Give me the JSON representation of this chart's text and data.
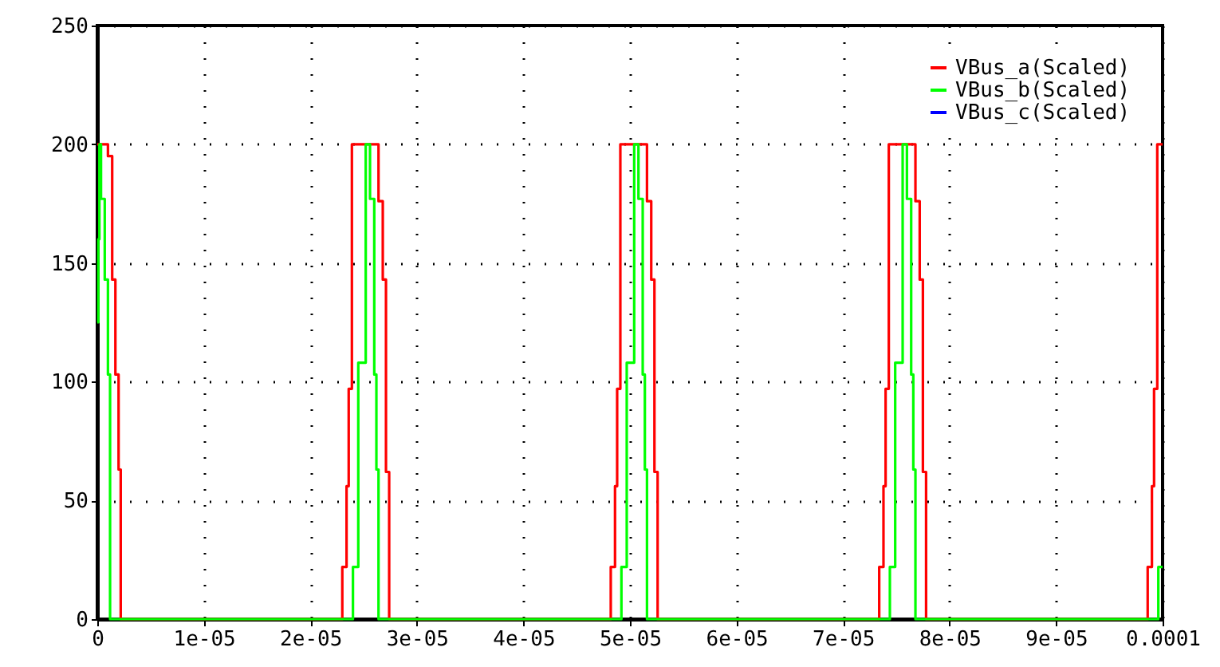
{
  "chart_data": {
    "type": "step",
    "xlim": [
      0,
      0.0001
    ],
    "xticks": [
      0,
      {
        "value": 1e-05,
        "label": "1e-05"
      },
      {
        "value": 2e-05,
        "label": "2e-05"
      },
      {
        "value": 3e-05,
        "label": "3e-05"
      },
      {
        "value": 4e-05,
        "label": "4e-05"
      },
      {
        "value": 5e-05,
        "label": "5e-05"
      },
      {
        "value": 6e-05,
        "label": "6e-05"
      },
      {
        "value": 7e-05,
        "label": "7e-05"
      },
      {
        "value": 8e-05,
        "label": "8e-05"
      },
      {
        "value": 9e-05,
        "label": "9e-05"
      },
      {
        "value": 0.0001,
        "label": "0.0001"
      }
    ],
    "ylim": [
      0,
      250
    ],
    "yticks": [
      0,
      50,
      100,
      150,
      200,
      250
    ],
    "grid": true,
    "legend": "top right",
    "line_style": "solid",
    "series": [
      {
        "name": "VBus_a(Scaled)",
        "color": "#ff0000",
        "x": [
          0,
          1e-06,
          1.4e-06,
          1.7e-06,
          2e-06,
          2.2e-06,
          2.3e-05,
          2.34e-05,
          2.36e-05,
          2.39e-05,
          2.64e-05,
          2.68e-05,
          2.71e-05,
          2.74e-05,
          4.82e-05,
          4.86e-05,
          4.88e-05,
          4.91e-05,
          5.16e-05,
          5.2e-05,
          5.23e-05,
          5.26e-05,
          7.34e-05,
          7.38e-05,
          7.4e-05,
          7.43e-05,
          7.68e-05,
          7.72e-05,
          7.75e-05,
          7.78e-05,
          9.86e-05,
          9.9e-05,
          9.92e-05,
          9.95e-05,
          0.0001
        ],
        "values": [
          200,
          195,
          143,
          103,
          63,
          0,
          22,
          56,
          97,
          200,
          176,
          143,
          62,
          0,
          22,
          56,
          97,
          200,
          176,
          143,
          62,
          0,
          22,
          56,
          97,
          200,
          176,
          143,
          62,
          0,
          22,
          56,
          97,
          200,
          200
        ]
      },
      {
        "name": "VBus_b(Scaled)",
        "color": "#00ff00",
        "x": [
          0,
          1e-07,
          2e-07,
          3.5e-07,
          7e-07,
          1e-06,
          1.2e-06,
          2.4e-05,
          2.45e-05,
          2.52e-05,
          2.56e-05,
          2.6e-05,
          2.62e-05,
          2.64e-05,
          4.92e-05,
          4.97e-05,
          5.04e-05,
          5.08e-05,
          5.12e-05,
          5.14e-05,
          5.16e-05,
          7.44e-05,
          7.49e-05,
          7.56e-05,
          7.6e-05,
          7.64e-05,
          7.66e-05,
          7.68e-05,
          9.96e-05,
          0.0001
        ],
        "values": [
          125,
          160,
          200,
          177,
          143,
          103,
          0,
          22,
          108,
          200,
          177,
          103,
          63,
          0,
          22,
          108,
          200,
          177,
          103,
          63,
          0,
          22,
          108,
          200,
          177,
          103,
          63,
          0,
          22,
          22
        ]
      },
      {
        "name": "VBus_c(Scaled)",
        "color": "#0000ff"
      }
    ]
  }
}
